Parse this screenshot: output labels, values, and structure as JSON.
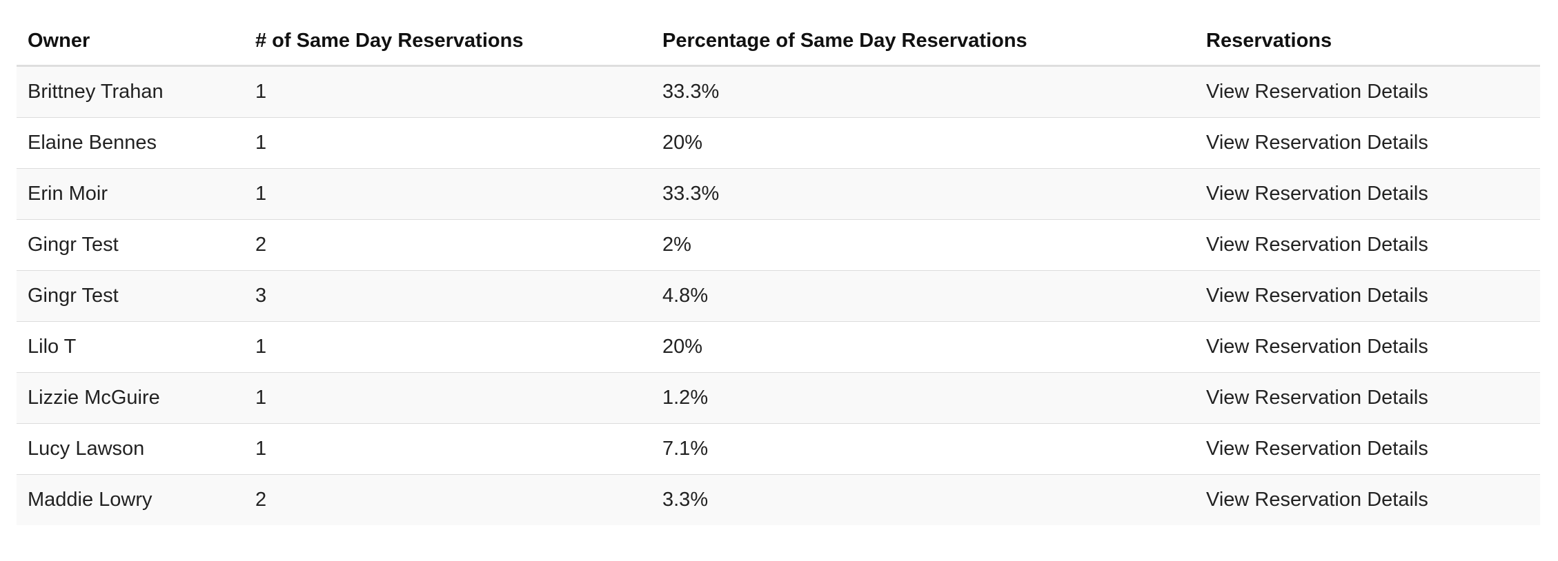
{
  "table": {
    "headers": {
      "owner": "Owner",
      "count": "# of Same Day Reservations",
      "percentage": "Percentage of Same Day Reservations",
      "reservations": "Reservations"
    },
    "rows": [
      {
        "owner": "Brittney Trahan",
        "count": "1",
        "percentage": "33.3%",
        "link": "View Reservation Details"
      },
      {
        "owner": "Elaine Bennes",
        "count": "1",
        "percentage": "20%",
        "link": "View Reservation Details"
      },
      {
        "owner": "Erin Moir",
        "count": "1",
        "percentage": "33.3%",
        "link": "View Reservation Details"
      },
      {
        "owner": "Gingr Test",
        "count": "2",
        "percentage": "2%",
        "link": "View Reservation Details"
      },
      {
        "owner": "Gingr Test",
        "count": "3",
        "percentage": "4.8%",
        "link": "View Reservation Details"
      },
      {
        "owner": "Lilo T",
        "count": "1",
        "percentage": "20%",
        "link": "View Reservation Details"
      },
      {
        "owner": "Lizzie McGuire",
        "count": "1",
        "percentage": "1.2%",
        "link": "View Reservation Details"
      },
      {
        "owner": "Lucy Lawson",
        "count": "1",
        "percentage": "7.1%",
        "link": "View Reservation Details"
      },
      {
        "owner": "Maddie Lowry",
        "count": "2",
        "percentage": "3.3%",
        "link": "View Reservation Details"
      }
    ]
  }
}
